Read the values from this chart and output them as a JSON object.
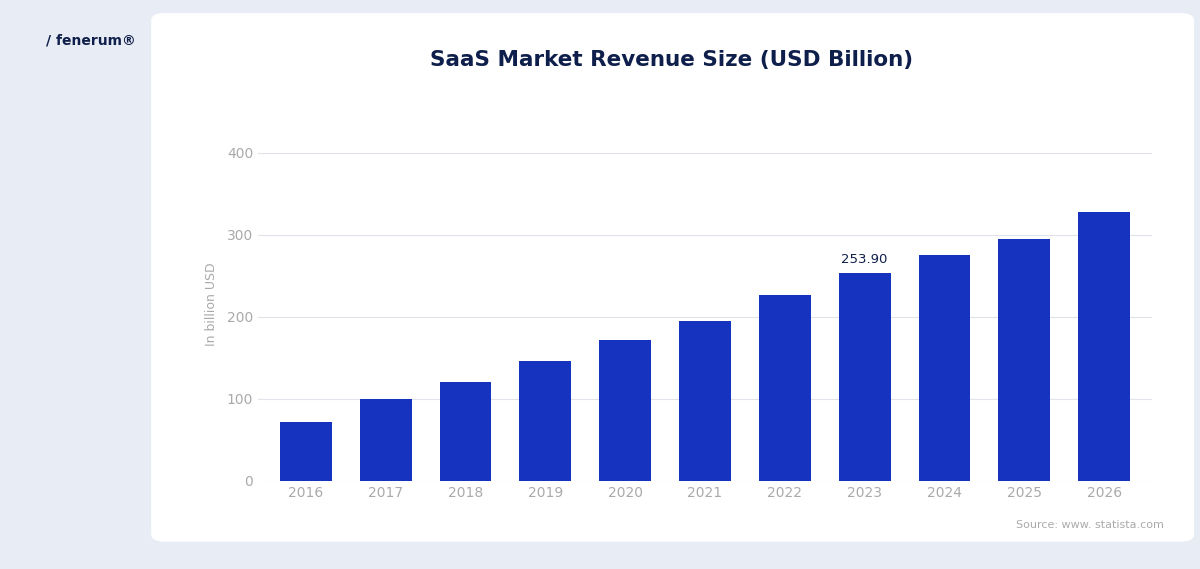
{
  "title": "SaaS Market Revenue Size (USD Billion)",
  "ylabel": "In billion USD",
  "years": [
    2016,
    2017,
    2018,
    2019,
    2020,
    2021,
    2022,
    2023,
    2024,
    2025,
    2026
  ],
  "values": [
    72,
    100,
    121,
    146,
    172,
    195,
    227,
    253.9,
    275,
    295,
    328
  ],
  "annotated_bar_index": 7,
  "annotated_bar_label": "253.90",
  "bar_color": "#1633c0",
  "bg_color": "#e8ecf4",
  "chart_bg": "#ffffff",
  "title_color": "#0f1f4b",
  "tick_color": "#aaaaaa",
  "ylabel_color": "#aaaaaa",
  "grid_color": "#e0e3ea",
  "source_text": "Source: www. statista.com",
  "source_color": "#aaaaaa",
  "yticks": [
    0,
    100,
    200,
    300,
    400
  ],
  "ylim": [
    0,
    430
  ],
  "bar_width": 0.65
}
